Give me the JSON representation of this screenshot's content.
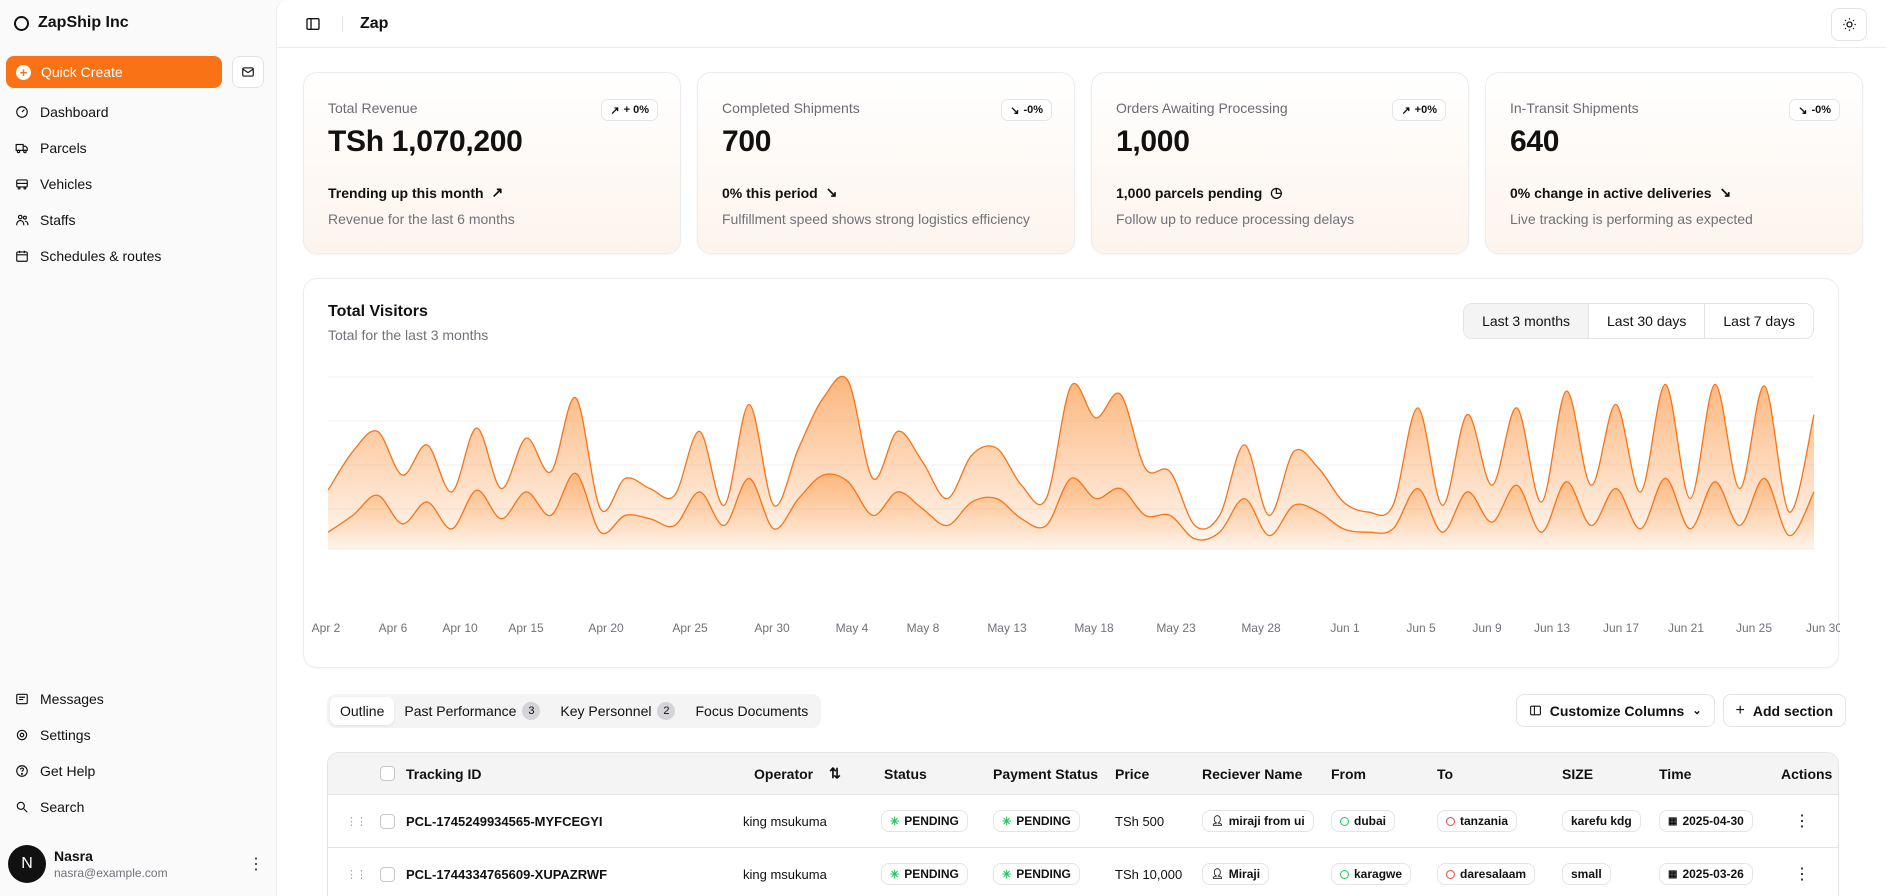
{
  "sidebar": {
    "brand": "ZapShip Inc",
    "quick_create": "Quick Create",
    "items": [
      {
        "label": "Dashboard",
        "icon": "dashboard-icon"
      },
      {
        "label": "Parcels",
        "icon": "truck-icon"
      },
      {
        "label": "Vehicles",
        "icon": "bus-icon"
      },
      {
        "label": "Staffs",
        "icon": "users-icon"
      },
      {
        "label": "Schedules & routes",
        "icon": "calendar-icon"
      }
    ],
    "bottom_items": [
      {
        "label": "Messages",
        "icon": "message-icon"
      },
      {
        "label": "Settings",
        "icon": "gear-icon"
      },
      {
        "label": "Get Help",
        "icon": "help-icon"
      },
      {
        "label": "Search",
        "icon": "search-icon"
      }
    ],
    "user": {
      "initial": "N",
      "name": "Nasra",
      "email": "nasra@example.com"
    }
  },
  "header": {
    "title": "Zap"
  },
  "stats": [
    {
      "label": "Total Revenue",
      "value": "TSh 1,070,200",
      "badge": "+ 0%",
      "trend": "Trending up this month",
      "desc": "Revenue for the last 6 months"
    },
    {
      "label": "Completed Shipments",
      "value": "700",
      "badge": "-0%",
      "trend": "0% this period",
      "desc": "Fulfillment speed shows strong logistics efficiency"
    },
    {
      "label": "Orders Awaiting Processing",
      "value": "1,000",
      "badge": "+0%",
      "trend": "1,000 parcels pending",
      "desc": "Follow up to reduce processing delays"
    },
    {
      "label": "In-Transit Shipments",
      "value": "640",
      "badge": "-0%",
      "trend": "0% change in active deliveries",
      "desc": "Live tracking is performing as expected"
    }
  ],
  "visitors": {
    "title": "Total Visitors",
    "subtitle": "Total for the last 3 months",
    "ranges": [
      "Last 3 months",
      "Last 30 days",
      "Last 7 days"
    ],
    "active_range": "Last 3 months"
  },
  "chart_data": {
    "type": "area",
    "x_ticks": [
      "Apr 2",
      "Apr 6",
      "Apr 10",
      "Apr 15",
      "Apr 20",
      "Apr 25",
      "Apr 30",
      "May 4",
      "May 8",
      "May 13",
      "May 18",
      "May 23",
      "May 28",
      "Jun 1",
      "Jun 5",
      "Jun 9",
      "Jun 13",
      "Jun 17",
      "Jun 21",
      "Jun 25",
      "Jun 30"
    ],
    "series": [
      {
        "values": [
          0.35,
          0.58,
          0.7,
          0.44,
          0.62,
          0.34,
          0.72,
          0.36,
          0.66,
          0.46,
          0.9,
          0.24,
          0.42,
          0.36,
          0.32,
          0.7,
          0.26,
          0.86,
          0.26,
          0.6,
          0.9,
          1.0,
          0.42,
          0.7,
          0.52,
          0.3,
          0.56,
          0.6,
          0.38,
          0.3,
          0.97,
          0.78,
          0.92,
          0.48,
          0.46,
          0.14,
          0.2,
          0.62,
          0.2,
          0.58,
          0.48,
          0.28,
          0.22,
          0.26,
          0.84,
          0.26,
          0.8,
          0.38,
          0.84,
          0.28,
          0.94,
          0.38,
          0.86,
          0.34,
          0.98,
          0.3,
          0.98,
          0.36,
          0.97,
          0.22,
          0.8
        ]
      },
      {
        "values": [
          0.1,
          0.2,
          0.32,
          0.15,
          0.28,
          0.12,
          0.35,
          0.18,
          0.34,
          0.2,
          0.45,
          0.1,
          0.2,
          0.18,
          0.14,
          0.34,
          0.14,
          0.42,
          0.12,
          0.3,
          0.44,
          0.4,
          0.2,
          0.34,
          0.24,
          0.14,
          0.28,
          0.3,
          0.18,
          0.14,
          0.42,
          0.3,
          0.36,
          0.2,
          0.2,
          0.06,
          0.1,
          0.3,
          0.08,
          0.26,
          0.22,
          0.12,
          0.1,
          0.12,
          0.36,
          0.1,
          0.34,
          0.16,
          0.38,
          0.1,
          0.4,
          0.14,
          0.36,
          0.12,
          0.42,
          0.12,
          0.4,
          0.14,
          0.42,
          0.08,
          0.34
        ]
      }
    ]
  },
  "tabs": [
    {
      "label": "Outline",
      "count": ""
    },
    {
      "label": "Past Performance",
      "count": "3"
    },
    {
      "label": "Key Personnel",
      "count": "2"
    },
    {
      "label": "Focus Documents",
      "count": ""
    }
  ],
  "tools": {
    "customize": "Customize Columns",
    "add": "Add section"
  },
  "table": {
    "columns": [
      "Tracking ID",
      "Operator",
      "Status",
      "Payment Status",
      "Price",
      "Reciever Name",
      "From",
      "To",
      "SIZE",
      "Time",
      "Actions"
    ],
    "rows": [
      {
        "id": "PCL-1745249934565-MYFCEGYI",
        "operator": "king msukuma",
        "status": "PENDING",
        "payment": "PENDING",
        "price": "TSh 500",
        "receiver": "miraji from ui",
        "from": "dubai",
        "to": "tanzania",
        "size": "karefu kdg",
        "time": "2025-04-30"
      },
      {
        "id": "PCL-1744334765609-XUPAZRWF",
        "operator": "king msukuma",
        "status": "PENDING",
        "payment": "PENDING",
        "price": "TSh 10,000",
        "receiver": "Miraji",
        "from": "karagwe",
        "to": "daresalaam",
        "size": "small",
        "time": "2025-03-26"
      }
    ]
  },
  "colors": {
    "accent": "#f97316",
    "area": "#fb923c"
  }
}
